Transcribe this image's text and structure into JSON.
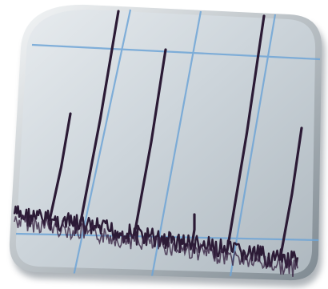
{
  "image": {
    "subject": "spectrum-icon",
    "colors": {
      "background": "#ffffff",
      "tile": "#c9d1d7",
      "tile_highlight": "#e6ebee",
      "tile_shadow": "#8e9aa3",
      "grid": "#6fa5d6",
      "trace": "#2b1a35"
    }
  }
}
